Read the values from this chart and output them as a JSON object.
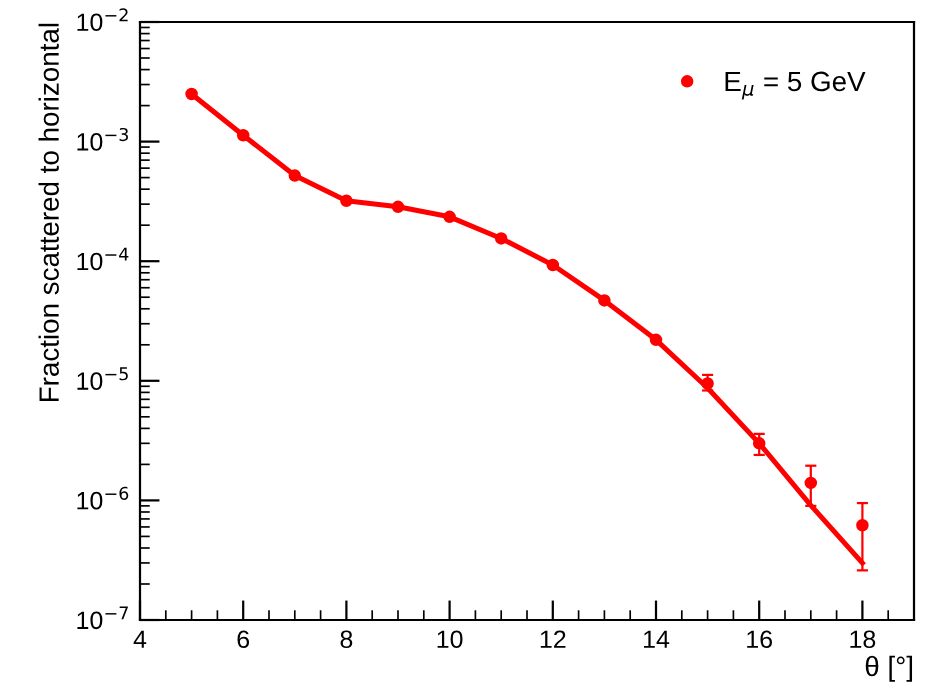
{
  "chart_data": {
    "type": "scatter",
    "xlabel": "θ [°]",
    "ylabel": "Fraction scattered to horizontal",
    "log": "y",
    "x": [
      5,
      6,
      7,
      8,
      9,
      10,
      11,
      12,
      13,
      14,
      15,
      16,
      17,
      18
    ],
    "series": [
      {
        "name": "E$_{μ}$ = 5 GeV",
        "color": "#ff0000",
        "marker": "circle",
        "values": [
          0.0025,
          0.00113,
          0.00052,
          0.00032,
          0.000285,
          0.000235,
          0.000155,
          9.3e-05,
          4.7e-05,
          2.2e-05,
          9.5e-06,
          3e-06,
          1.4e-06,
          6.2e-07
        ],
        "errors": [
          null,
          null,
          null,
          null,
          null,
          null,
          null,
          null,
          null,
          null,
          [
            8.3e-06,
            1.12e-05
          ],
          [
            2.4e-06,
            3.6e-06
          ],
          [
            9e-07,
            1.95e-06
          ],
          [
            2.6e-07,
            9.5e-07
          ]
        ]
      },
      {
        "color": "#ff0000",
        "type": "line",
        "values": [
          0.0025,
          0.00113,
          0.00052,
          0.00032,
          0.000285,
          0.000235,
          0.000155,
          9.3e-05,
          4.7e-05,
          2.2e-05,
          8.7e-06,
          3e-06,
          9.1e-07,
          3e-07
        ]
      }
    ],
    "xlim": [
      4,
      19
    ],
    "xticks": [
      4,
      6,
      8,
      10,
      12,
      14,
      16,
      18
    ],
    "ylim": [
      1e-07,
      0.01
    ],
    "yticks": [
      {
        "value": 1e-07,
        "label": "10$^{−7}$"
      },
      {
        "value": 1e-06,
        "label": "10$^{−6}$"
      },
      {
        "value": 1e-05,
        "label": "10$^{−5}$"
      },
      {
        "value": 0.0001,
        "label": "10$^{−4}$"
      },
      {
        "value": 0.001,
        "label": "10$^{−3}$"
      },
      {
        "value": 0.01,
        "label": "10$^{−2}$"
      }
    ],
    "grid": false,
    "legend": "top right"
  }
}
